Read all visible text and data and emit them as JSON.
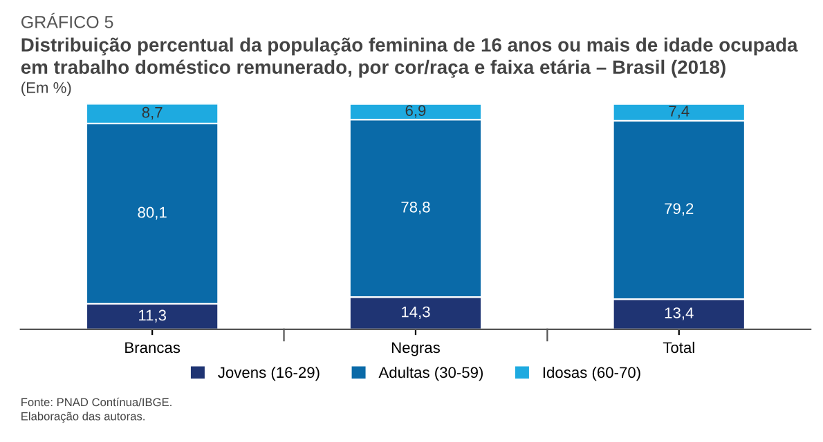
{
  "chart_data": {
    "type": "bar",
    "stacked": true,
    "title": "GRÁFICO 5",
    "subtitle": "Distribuição percentual da população feminina de 16 anos ou mais de idade ocupada em trabalho doméstico remunerado, por cor/raça e faixa etária – Brasil (2018)",
    "annotations": [
      "(Em %)",
      "Fonte: PNAD Contínua/IBGE.\nElaboração das autoras."
    ],
    "categories": [
      "Brancas",
      "Negras",
      "Total"
    ],
    "series": [
      {
        "name": "Jovens (16-29)",
        "color": "#1f3473",
        "values": [
          11.3,
          14.3,
          13.4
        ],
        "value_labels": [
          "11,3",
          "14,3",
          "13,4"
        ]
      },
      {
        "name": "Adultas (30-59)",
        "color": "#0a6aa8",
        "values": [
          80.1,
          78.8,
          79.2
        ],
        "value_labels": [
          "80,1",
          "78,8",
          "79,2"
        ]
      },
      {
        "name": "Idosas (60-70)",
        "color": "#1eaae0",
        "values": [
          8.7,
          6.9,
          7.4
        ],
        "value_labels": [
          "8,7",
          "6,9",
          "7,4"
        ]
      }
    ],
    "legend": "bottom",
    "tick_labels": "x"
  }
}
